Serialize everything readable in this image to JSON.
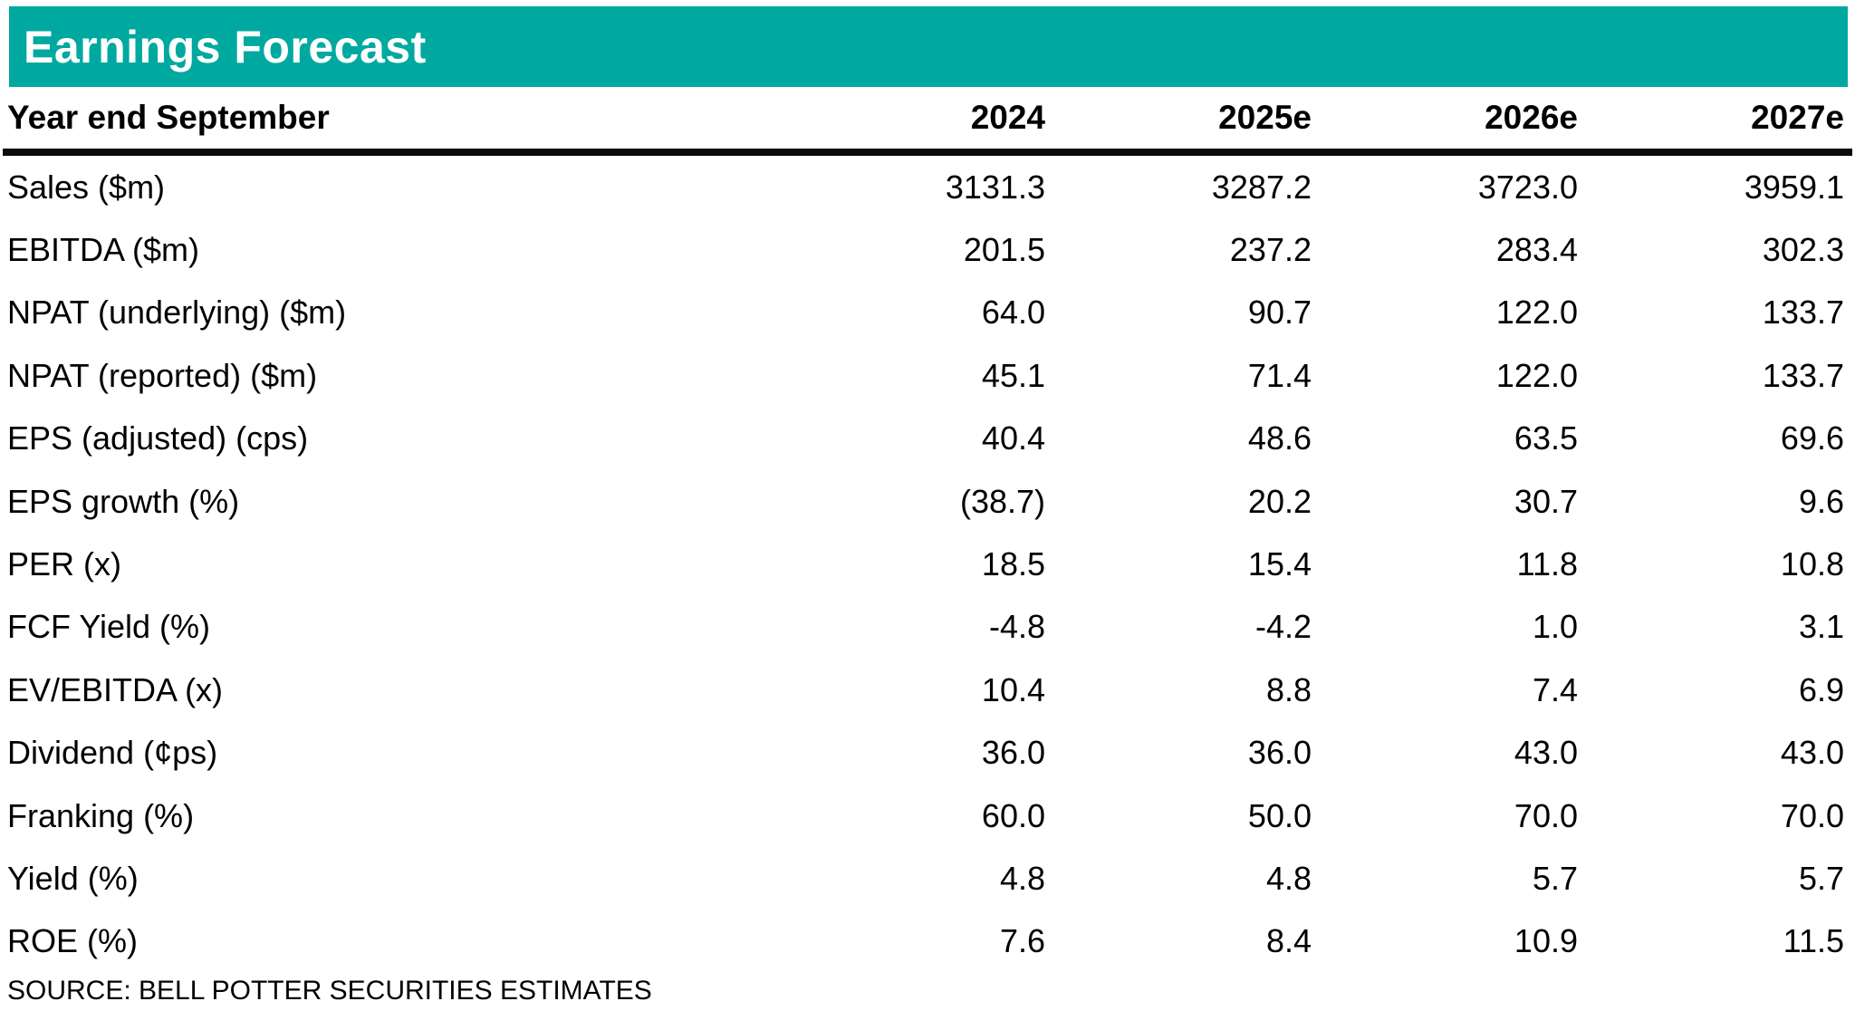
{
  "title": "Earnings Forecast",
  "table": {
    "row_header": "Year end September",
    "columns": [
      "2024",
      "2025e",
      "2026e",
      "2027e"
    ],
    "rows": [
      {
        "label": "Sales ($m)",
        "values": [
          "3131.3",
          "3287.2",
          "3723.0",
          "3959.1"
        ]
      },
      {
        "label": "EBITDA ($m)",
        "values": [
          "201.5",
          "237.2",
          "283.4",
          "302.3"
        ]
      },
      {
        "label": "NPAT (underlying) ($m)",
        "values": [
          "64.0",
          "90.7",
          "122.0",
          "133.7"
        ]
      },
      {
        "label": "NPAT (reported) ($m)",
        "values": [
          "45.1",
          "71.4",
          "122.0",
          "133.7"
        ]
      },
      {
        "label": "EPS (adjusted) (cps)",
        "values": [
          "40.4",
          "48.6",
          "63.5",
          "69.6"
        ]
      },
      {
        "label": "EPS growth (%)",
        "values": [
          "(38.7)",
          "20.2",
          "30.7",
          "9.6"
        ]
      },
      {
        "label": "PER (x)",
        "values": [
          "18.5",
          "15.4",
          "11.8",
          "10.8"
        ]
      },
      {
        "label": "FCF Yield (%)",
        "values": [
          "-4.8",
          "-4.2",
          "1.0",
          "3.1"
        ]
      },
      {
        "label": "EV/EBITDA (x)",
        "values": [
          "10.4",
          "8.8",
          "7.4",
          "6.9"
        ]
      },
      {
        "label": "Dividend (¢ps)",
        "values": [
          "36.0",
          "36.0",
          "43.0",
          "43.0"
        ]
      },
      {
        "label": "Franking (%)",
        "values": [
          "60.0",
          "50.0",
          "70.0",
          "70.0"
        ]
      },
      {
        "label": "Yield (%)",
        "values": [
          "4.8",
          "4.8",
          "5.7",
          "5.7"
        ]
      },
      {
        "label": "ROE (%)",
        "values": [
          "7.6",
          "8.4",
          "10.9",
          "11.5"
        ]
      }
    ]
  },
  "source": "SOURCE: BELL POTTER SECURITIES ESTIMATES",
  "colors": {
    "accent_teal": "#00A9A0",
    "rule_black": "#0b0b0b",
    "title_text": "#ffffff"
  },
  "chart_data": {
    "type": "table",
    "title": "Earnings Forecast",
    "row_header": "Year end September",
    "columns": [
      "2024",
      "2025e",
      "2026e",
      "2027e"
    ],
    "rows": [
      {
        "metric": "Sales ($m)",
        "values": [
          3131.3,
          3287.2,
          3723.0,
          3959.1
        ]
      },
      {
        "metric": "EBITDA ($m)",
        "values": [
          201.5,
          237.2,
          283.4,
          302.3
        ]
      },
      {
        "metric": "NPAT (underlying) ($m)",
        "values": [
          64.0,
          90.7,
          122.0,
          133.7
        ]
      },
      {
        "metric": "NPAT (reported) ($m)",
        "values": [
          45.1,
          71.4,
          122.0,
          133.7
        ]
      },
      {
        "metric": "EPS (adjusted) (cps)",
        "values": [
          40.4,
          48.6,
          63.5,
          69.6
        ]
      },
      {
        "metric": "EPS growth (%)",
        "values": [
          -38.7,
          20.2,
          30.7,
          9.6
        ]
      },
      {
        "metric": "PER (x)",
        "values": [
          18.5,
          15.4,
          11.8,
          10.8
        ]
      },
      {
        "metric": "FCF Yield (%)",
        "values": [
          -4.8,
          -4.2,
          1.0,
          3.1
        ]
      },
      {
        "metric": "EV/EBITDA (x)",
        "values": [
          10.4,
          8.8,
          7.4,
          6.9
        ]
      },
      {
        "metric": "Dividend (¢ps)",
        "values": [
          36.0,
          36.0,
          43.0,
          43.0
        ]
      },
      {
        "metric": "Franking (%)",
        "values": [
          60.0,
          50.0,
          70.0,
          70.0
        ]
      },
      {
        "metric": "Yield (%)",
        "values": [
          4.8,
          4.8,
          5.7,
          5.7
        ]
      },
      {
        "metric": "ROE (%)",
        "values": [
          7.6,
          8.4,
          10.9,
          11.5
        ]
      }
    ],
    "source": "SOURCE: BELL POTTER SECURITIES ESTIMATES",
    "notes": "Negative EPS growth shown in accounting parentheses; e suffix on columns denotes estimates"
  }
}
